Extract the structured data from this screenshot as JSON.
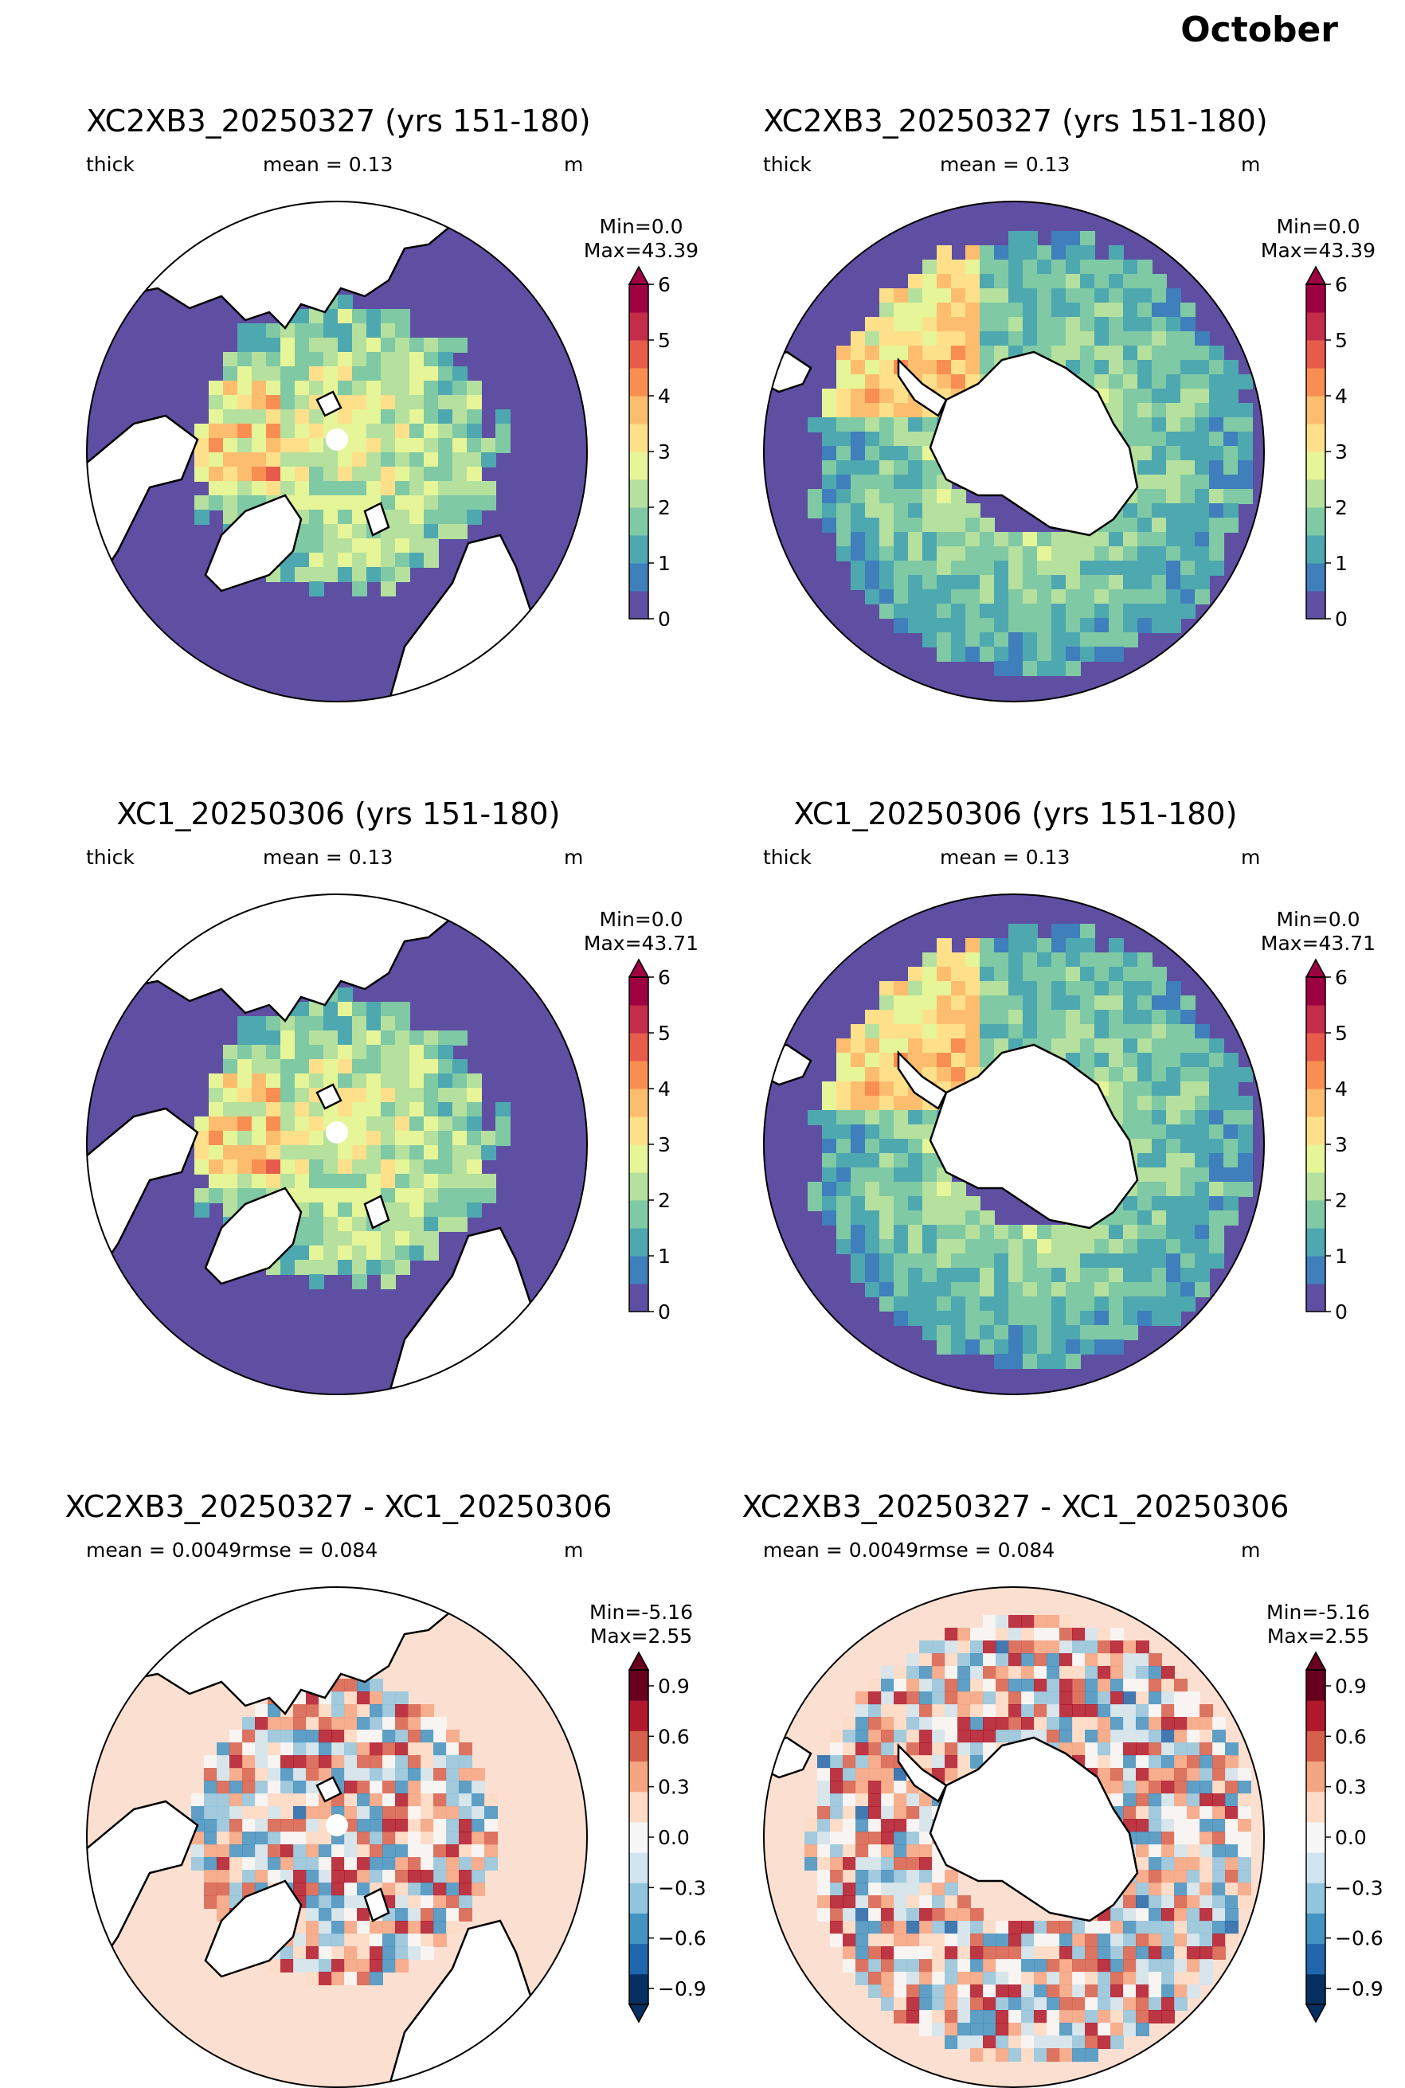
{
  "page_title": "October",
  "panels": [
    {
      "title": "XC2XB3_20250327 (yrs 151-180)",
      "var": "thick",
      "stat": "mean = 0.13",
      "units": "m",
      "min": "Min=0.0",
      "max": "Max=43.39",
      "hemisphere": "north",
      "scale": "thickness"
    },
    {
      "title": "XC2XB3_20250327 (yrs 151-180)",
      "var": "thick",
      "stat": "mean = 0.13",
      "units": "m",
      "min": "Min=0.0",
      "max": "Max=43.39",
      "hemisphere": "south",
      "scale": "thickness"
    },
    {
      "title": "XC1_20250306 (yrs 151-180)",
      "var": "thick",
      "stat": "mean = 0.13",
      "units": "m",
      "min": "Min=0.0",
      "max": "Max=43.71",
      "hemisphere": "north",
      "scale": "thickness"
    },
    {
      "title": "XC1_20250306 (yrs 151-180)",
      "var": "thick",
      "stat": "mean = 0.13",
      "units": "m",
      "min": "Min=0.0",
      "max": "Max=43.71",
      "hemisphere": "south",
      "scale": "thickness"
    },
    {
      "title": "XC2XB3_20250327 - XC1_20250306",
      "var": "",
      "stat": "mean = 0.0049rmse = 0.084",
      "units": "m",
      "min": "Min=-5.16",
      "max": "Max=2.55",
      "hemisphere": "north",
      "scale": "diff"
    },
    {
      "title": "XC2XB3_20250327 - XC1_20250306",
      "var": "",
      "stat": "mean = 0.0049rmse = 0.084",
      "units": "m",
      "min": "Min=-5.16",
      "max": "Max=2.55",
      "hemisphere": "south",
      "scale": "diff"
    }
  ],
  "scales": {
    "thickness": {
      "ticks": [
        "0",
        "1",
        "2",
        "3",
        "4",
        "5",
        "6"
      ],
      "colors": [
        "#5e4fa2",
        "#3f7fbb",
        "#4ea8b0",
        "#7fc9a4",
        "#b5e09e",
        "#e6f598",
        "#fee08b",
        "#fdbd6f",
        "#f98e52",
        "#e75b4b",
        "#c42c4a",
        "#9e0142"
      ],
      "extend_max": true,
      "extend_min": false
    },
    "diff": {
      "ticks": [
        "0.9",
        "0.6",
        "0.3",
        "0.0",
        "−0.3",
        "−0.6",
        "−0.9"
      ],
      "colors": [
        "#053061",
        "#2166ac",
        "#4393c3",
        "#92c5de",
        "#d1e5f0",
        "#f7f7f7",
        "#fddbc7",
        "#f4a582",
        "#d6604d",
        "#b2182b",
        "#67001f"
      ],
      "extend_max": true,
      "extend_min": true
    }
  },
  "map_colors": {
    "ocean_zero": "#5e4fa2",
    "ocean_diff": "#fbe0d2",
    "land": "#ffffff",
    "coast": "#000000"
  }
}
